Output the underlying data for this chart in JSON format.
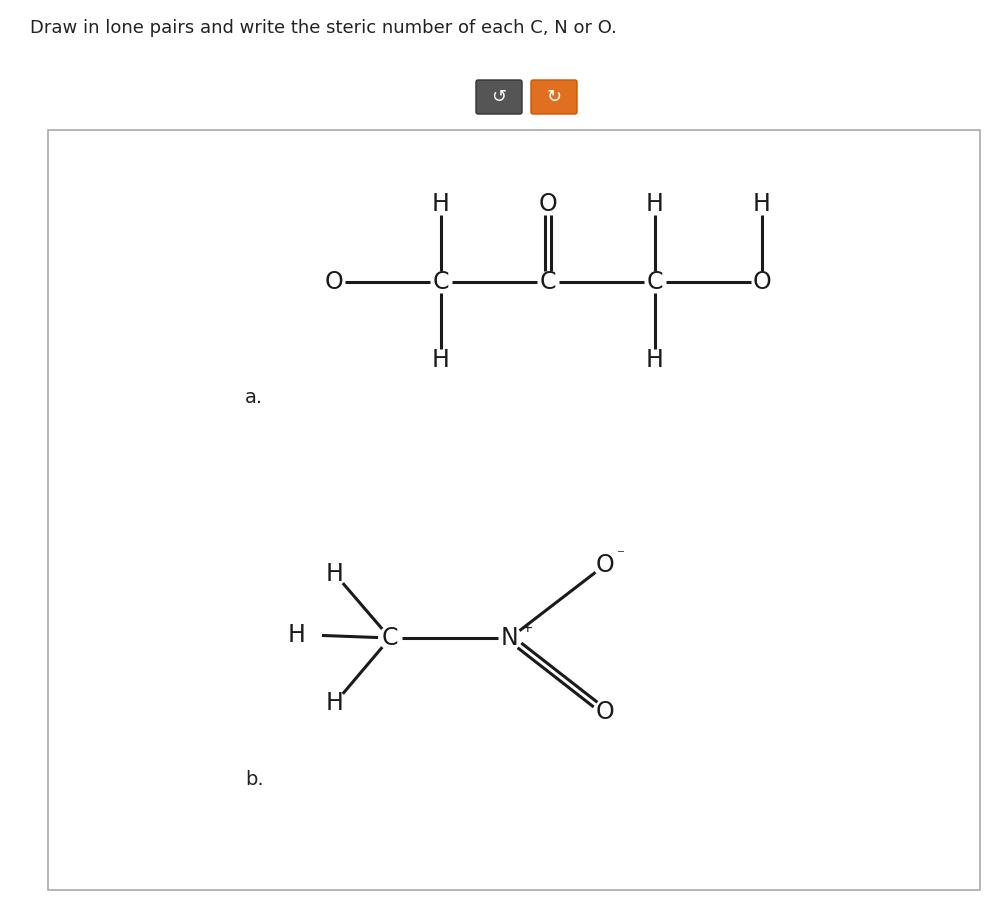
{
  "title": "Draw in lone pairs and write the steric number of each C, N or O.",
  "background_color": "#ffffff",
  "border_color": "#aaaaaa",
  "text_color": "#222222",
  "atom_color": "#1a1a1a",
  "button1_color": "#555555",
  "button2_color": "#e07020",
  "button1_label": "↺",
  "button2_label": "↻",
  "label_a": "a.",
  "label_b": "b.",
  "fig_width": 9.97,
  "fig_height": 9.16,
  "dpi": 100
}
